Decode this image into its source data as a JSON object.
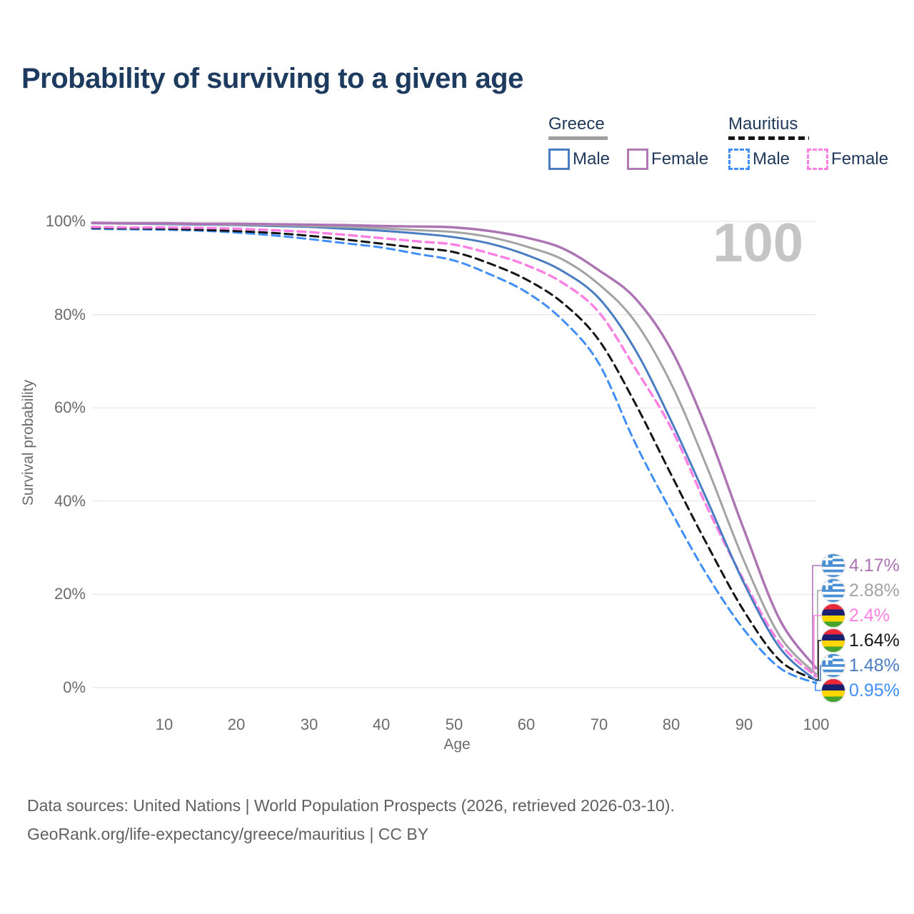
{
  "title": "Probability of surviving to a given age",
  "watermark_age": "100",
  "legend": {
    "groups": [
      {
        "name": "Greece",
        "line_style": "solid",
        "underline_color": "#9e9e9e",
        "items": [
          {
            "label": "Male",
            "color": "#4a7cc1"
          },
          {
            "label": "Female",
            "color": "#b279b2"
          }
        ]
      },
      {
        "name": "Mauritius",
        "line_style": "dashed",
        "underline_color": "#151515",
        "items": [
          {
            "label": "Male",
            "color": "#3f8efa"
          },
          {
            "label": "Female",
            "color": "#fc80e3"
          }
        ]
      }
    ]
  },
  "chart_data": {
    "type": "line",
    "title": "Probability of surviving to a given age",
    "xlabel": "Age",
    "ylabel": "Survival probability",
    "xlim": [
      0,
      100
    ],
    "ylim": [
      0,
      100
    ],
    "grid": "horizontal",
    "x_tick_labels": [
      "10",
      "20",
      "30",
      "40",
      "50",
      "60",
      "70",
      "80",
      "90",
      "100"
    ],
    "x_tick_values": [
      10,
      20,
      30,
      40,
      50,
      60,
      70,
      80,
      90,
      100
    ],
    "y_tick_labels": [
      "0%",
      "20%",
      "40%",
      "60%",
      "80%",
      "100%"
    ],
    "y_tick_values": [
      0,
      20,
      40,
      60,
      80,
      100
    ],
    "ages": [
      0,
      5,
      10,
      15,
      20,
      25,
      30,
      35,
      40,
      45,
      50,
      55,
      60,
      65,
      70,
      75,
      80,
      85,
      90,
      95,
      100
    ],
    "series": [
      {
        "name": "Mauritius Male",
        "country": "Mauritius",
        "sex": "Male",
        "color": "#3f8efa",
        "dash": "dashed",
        "width": 3,
        "values": [
          98.4,
          98.3,
          98.2,
          98.0,
          97.6,
          97.0,
          96.2,
          95.3,
          94.4,
          93.0,
          91.6,
          88.6,
          84.8,
          78.8,
          69.5,
          52.5,
          37.7,
          24.0,
          12.5,
          4.2,
          0.95
        ]
      },
      {
        "name": "Mauritius",
        "country": "Mauritius",
        "sex": "Both",
        "color": "#141414",
        "dash": "dashed",
        "width": 3,
        "values": [
          98.6,
          98.5,
          98.4,
          98.2,
          97.9,
          97.5,
          96.9,
          96.1,
          95.2,
          94.3,
          93.4,
          90.9,
          87.5,
          82.5,
          74.5,
          61.0,
          45.6,
          30.5,
          16.5,
          5.8,
          1.64
        ]
      },
      {
        "name": "Mauritius Female",
        "country": "Mauritius",
        "sex": "Female",
        "color": "#fc80e3",
        "dash": "dashed",
        "width": 3.4,
        "values": [
          98.8,
          98.7,
          98.7,
          98.6,
          98.4,
          98.1,
          97.7,
          97.1,
          96.4,
          95.7,
          95.0,
          93.1,
          90.6,
          86.8,
          80.5,
          68.5,
          55.6,
          38.5,
          23.0,
          9.5,
          2.4
        ]
      },
      {
        "name": "Greece Male",
        "country": "Greece",
        "sex": "Male",
        "color": "#4a7cc1",
        "dash": "solid",
        "width": 3,
        "values": [
          99.6,
          99.5,
          99.4,
          99.3,
          99.2,
          99.0,
          98.8,
          98.4,
          98.0,
          97.4,
          96.6,
          95.2,
          92.8,
          89.3,
          83.5,
          72.5,
          57.1,
          40.0,
          22.5,
          8.5,
          1.48
        ]
      },
      {
        "name": "Greece",
        "country": "Greece",
        "sex": "Both",
        "color": "#a3a3a3",
        "dash": "solid",
        "width": 3,
        "values": [
          99.6,
          99.5,
          99.5,
          99.4,
          99.3,
          99.2,
          99.0,
          98.8,
          98.5,
          98.1,
          97.7,
          96.6,
          94.6,
          91.8,
          86.5,
          78.5,
          65.1,
          47.0,
          27.3,
          11.0,
          2.88
        ]
      },
      {
        "name": "Greece Female",
        "country": "Greece",
        "sex": "Female",
        "color": "#ad74b4",
        "dash": "solid",
        "width": 3.4,
        "values": [
          99.7,
          99.6,
          99.6,
          99.5,
          99.5,
          99.4,
          99.3,
          99.2,
          99.0,
          98.9,
          98.7,
          97.9,
          96.5,
          94.2,
          89.5,
          83.5,
          72.4,
          55.0,
          34.0,
          14.5,
          4.17
        ]
      }
    ],
    "end_labels": [
      {
        "flag": "greece",
        "country": "Greece",
        "text": "4.17%",
        "value": 4.17,
        "color": "#ad74b4"
      },
      {
        "flag": "greece",
        "country": "Greece",
        "text": "2.88%",
        "value": 2.88,
        "color": "#a3a3a3"
      },
      {
        "flag": "mauritius",
        "country": "Mauritius",
        "text": "2.4%",
        "value": 2.4,
        "color": "#fc80e3"
      },
      {
        "flag": "mauritius",
        "country": "Mauritius",
        "text": "1.64%",
        "value": 1.64,
        "color": "#141414"
      },
      {
        "flag": "greece",
        "country": "Greece",
        "text": "1.48%",
        "value": 1.48,
        "color": "#4a7cc1"
      },
      {
        "flag": "mauritius",
        "country": "Mauritius",
        "text": "0.95%",
        "value": 0.95,
        "color": "#3f8efa"
      }
    ]
  },
  "footer": {
    "line1": "Data sources: United Nations | World Population Prospects (2026, retrieved 2026-03-10).",
    "line2": "GeoRank.org/life-expectancy/greece/mauritius | CC BY"
  },
  "colors": {
    "title": "#1d3a5f",
    "legend_text": "#21395a",
    "axis_text": "#6b6b6b",
    "gridline": "#e7e7e7",
    "watermark": "#c5c5c5",
    "footer_text": "#606060"
  }
}
